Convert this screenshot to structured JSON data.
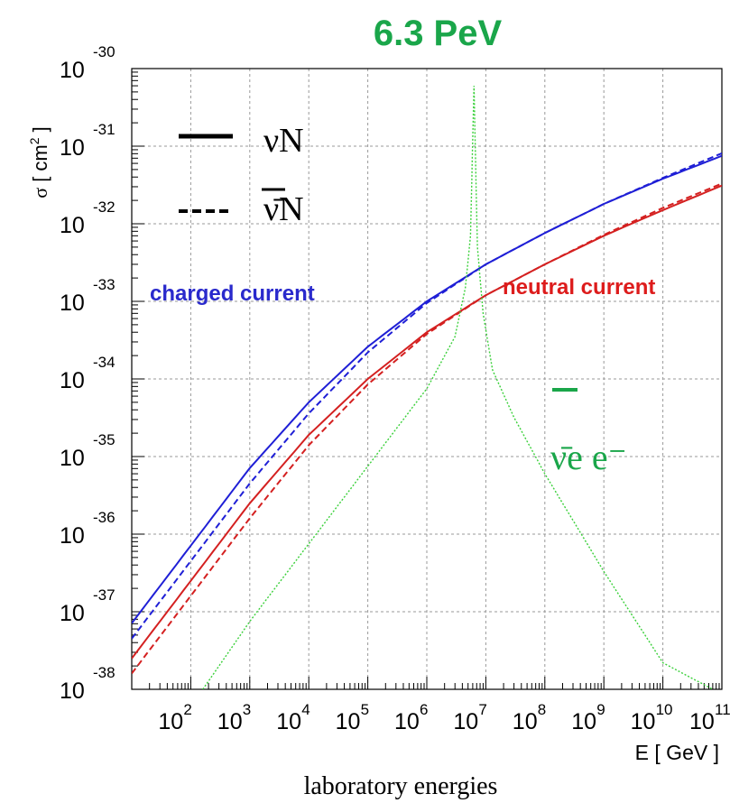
{
  "chart_data": {
    "type": "line",
    "headline": "6.3 PeV",
    "headline_color": "#1aa64a",
    "ylabel_sigma": "σ",
    "ylabel_unit_pre": " [ cm",
    "ylabel_unit_exp": "2",
    "ylabel_unit_post": " ]",
    "xlabel": "E [ GeV ]",
    "caption": "laboratory energies",
    "x_scale": "log",
    "y_scale": "log",
    "xlim": [
      10,
      100000000000.0
    ],
    "ylim": [
      1e-38,
      1e-30
    ],
    "grid": true,
    "x_ticks": [
      {
        "base": "10",
        "exp": "2",
        "value": 100
      },
      {
        "base": "10",
        "exp": "3",
        "value": 1000
      },
      {
        "base": "10",
        "exp": "4",
        "value": 10000
      },
      {
        "base": "10",
        "exp": "5",
        "value": 100000
      },
      {
        "base": "10",
        "exp": "6",
        "value": 1000000
      },
      {
        "base": "10",
        "exp": "7",
        "value": 10000000
      },
      {
        "base": "10",
        "exp": "8",
        "value": 100000000
      },
      {
        "base": "10",
        "exp": "9",
        "value": 1000000000
      },
      {
        "base": "10",
        "exp": "10",
        "value": 10000000000
      },
      {
        "base": "10",
        "exp": "11",
        "value": 100000000000
      }
    ],
    "y_ticks": [
      {
        "base": "10",
        "exp": "-30",
        "value": 1e-30
      },
      {
        "base": "10",
        "exp": "-31",
        "value": 1e-31
      },
      {
        "base": "10",
        "exp": "-32",
        "value": 1e-32
      },
      {
        "base": "10",
        "exp": "-33",
        "value": 1e-33
      },
      {
        "base": "10",
        "exp": "-34",
        "value": 1e-34
      },
      {
        "base": "10",
        "exp": "-35",
        "value": 1e-35
      },
      {
        "base": "10",
        "exp": "-36",
        "value": 1e-36
      },
      {
        "base": "10",
        "exp": "-37",
        "value": 1e-37
      },
      {
        "base": "10",
        "exp": "-38",
        "value": 1e-38
      }
    ],
    "legend": [
      {
        "style": "solid",
        "label": "νN"
      },
      {
        "style": "dashed",
        "label": "ν̄N"
      }
    ],
    "annotations": [
      {
        "text": "charged current",
        "color": "#2a2acc"
      },
      {
        "text": "neutral current",
        "color": "#dd1c1c"
      },
      {
        "text": "ν̄e e⁻",
        "color": "#1aa64a"
      }
    ],
    "series": [
      {
        "group": "charged current",
        "particle": "neutrino",
        "color": "#1f1fd6",
        "style": "solid",
        "x": [
          10,
          100,
          1000,
          10000,
          100000,
          1000000,
          10000000,
          100000000,
          1000000000,
          10000000000,
          100000000000
        ],
        "y": [
          7.1e-38,
          7.1e-37,
          7.1e-36,
          5e-35,
          2.6e-34,
          1e-33,
          3e-33,
          7.6e-33,
          1.8e-32,
          3.8e-32,
          7.5e-32
        ]
      },
      {
        "group": "charged current",
        "particle": "antineutrino",
        "color": "#1f1fd6",
        "style": "dashed",
        "x": [
          10,
          100,
          1000,
          10000,
          100000,
          1000000,
          10000000,
          100000000,
          1000000000,
          10000000000,
          100000000000
        ],
        "y": [
          4.5e-38,
          4.5e-37,
          4.5e-36,
          3.6e-35,
          2.2e-34,
          9.5e-34,
          3e-33,
          7.6e-33,
          1.8e-32,
          3.9e-32,
          8.1e-32
        ]
      },
      {
        "group": "neutral current",
        "particle": "neutrino",
        "color": "#d42020",
        "style": "solid",
        "x": [
          10,
          100,
          1000,
          10000,
          100000,
          1000000,
          10000000,
          100000000,
          1000000000,
          10000000000,
          100000000000
        ],
        "y": [
          2.5e-38,
          2.5e-37,
          2.5e-36,
          1.9e-35,
          1e-34,
          4e-34,
          1.2e-33,
          3e-33,
          7e-33,
          1.5e-32,
          3.1e-32
        ]
      },
      {
        "group": "neutral current",
        "particle": "antineutrino",
        "color": "#d42020",
        "style": "dashed",
        "x": [
          10,
          100,
          1000,
          10000,
          100000,
          1000000,
          10000000,
          100000000,
          1000000000,
          10000000000,
          100000000000
        ],
        "y": [
          1.6e-38,
          1.6e-37,
          1.6e-36,
          1.4e-35,
          8.5e-35,
          3.8e-34,
          1.2e-33,
          3e-33,
          7.2e-33,
          1.6e-32,
          3.3e-32
        ]
      },
      {
        "group": "ν̄e e⁻",
        "particle": "antineutrino-electron resonance",
        "color": "#3bd03b",
        "style": "dotted",
        "x": [
          160,
          1000,
          10000,
          100000,
          1000000,
          3000000,
          4500000,
          5500000,
          6300000,
          7200000,
          9000000,
          13000000,
          30000000,
          100000000,
          1000000000,
          10000000000,
          70000000000
        ],
        "y": [
          1e-38,
          7.5e-38,
          7.5e-37,
          7.5e-36,
          7.5e-35,
          3.5e-34,
          1.5e-33,
          7e-33,
          6e-31,
          5e-33,
          7e-34,
          1.3e-34,
          3.2e-35,
          6e-36,
          3.3e-37,
          2.2e-38,
          1e-38
        ]
      }
    ]
  }
}
